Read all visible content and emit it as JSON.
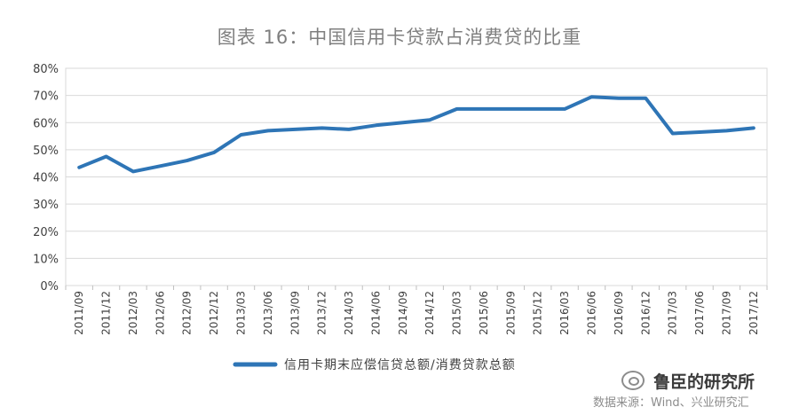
{
  "chart_data": {
    "type": "line",
    "title": "图表 16：中国信用卡贷款占消费贷的比重",
    "xlabel": "",
    "ylabel": "",
    "ylim": [
      0,
      80
    ],
    "y_ticks": [
      "0%",
      "10%",
      "20%",
      "30%",
      "40%",
      "50%",
      "60%",
      "70%",
      "80%"
    ],
    "grid": true,
    "legend_position": "bottom",
    "categories": [
      "2011/09",
      "2011/12",
      "2012/03",
      "2012/06",
      "2012/09",
      "2012/12",
      "2013/03",
      "2013/06",
      "2013/09",
      "2013/12",
      "2014/03",
      "2014/06",
      "2014/09",
      "2014/12",
      "2015/03",
      "2015/06",
      "2015/09",
      "2015/12",
      "2016/03",
      "2016/06",
      "2016/09",
      "2016/12",
      "2017/03",
      "2017/06",
      "2017/09",
      "2017/12"
    ],
    "series": [
      {
        "name": "信用卡期末应偿信贷总额/消费贷款总额",
        "color": "#2e75b6",
        "values": [
          43.5,
          47.5,
          42,
          44,
          46,
          49,
          55.5,
          57,
          57.5,
          58,
          57.5,
          59,
          60,
          61,
          65,
          65,
          65,
          65,
          65,
          69.5,
          69,
          69,
          56,
          56.5,
          57,
          58
        ]
      }
    ]
  },
  "watermark": {
    "name": "鲁臣的研究所",
    "source_note": "数据来源：Wind、兴业研究汇"
  }
}
